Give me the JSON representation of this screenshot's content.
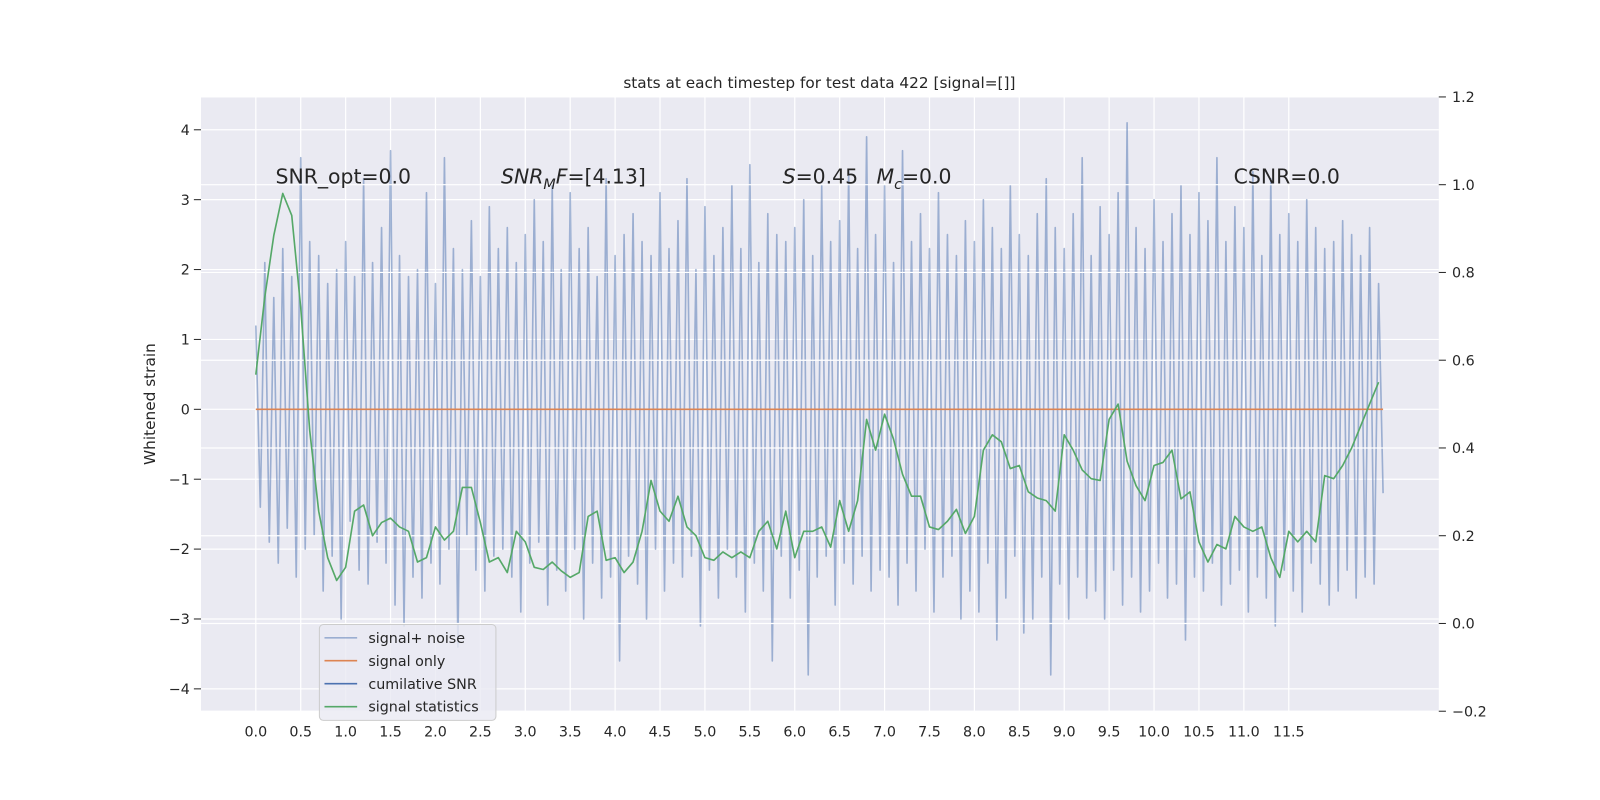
{
  "chart_data": {
    "type": "line",
    "title": "stats at each timestep for test data 422 [signal=[]]",
    "y_label": "Whitened strain",
    "annotations": {
      "snr_opt": "SNR_opt=0.0",
      "snr_mf": {
        "symbol": "SNR",
        "subscript": "M",
        "symbol2": "F",
        "rest": "=[4.13]"
      },
      "s": {
        "symbol": "S",
        "rest": "=0.45"
      },
      "mc": {
        "symbol": "M",
        "subscript": "c",
        "rest": "=0.0"
      },
      "csnr": "CSNR=0.0"
    },
    "xlim": [
      -0.61,
      13.17
    ],
    "xticks": [
      {
        "value": 0,
        "label": "0.0"
      },
      0.5,
      {
        "value": 1,
        "label": "1.0"
      },
      1.5,
      {
        "value": 2,
        "label": "2.0"
      },
      2.5,
      {
        "value": 3,
        "label": "3.0"
      },
      3.5,
      {
        "value": 4,
        "label": "4.0"
      },
      4.5,
      {
        "value": 5,
        "label": "5.0"
      },
      5.5,
      {
        "value": 6,
        "label": "6.0"
      },
      6.5,
      {
        "value": 7,
        "label": "7.0"
      },
      7.5,
      {
        "value": 8,
        "label": "8.0"
      },
      8.5,
      {
        "value": 9,
        "label": "9.0"
      },
      9.5,
      {
        "value": 10,
        "label": "10.0"
      },
      10.5,
      {
        "value": 11,
        "label": "11.0"
      },
      11.5
    ],
    "ylim": [
      -4.32,
      4.47
    ],
    "yticks": [
      {
        "value": -4,
        "label": "−4"
      },
      {
        "value": -3,
        "label": "−3"
      },
      {
        "value": -2,
        "label": "−2"
      },
      {
        "value": -1,
        "label": "−1"
      },
      0,
      1,
      2,
      3,
      4
    ],
    "y2lim": [
      -0.2,
      1.2
    ],
    "y2ticks": [
      {
        "value": -0.2,
        "label": "−0.2"
      },
      {
        "value": 0,
        "label": "0.0"
      },
      0.2,
      0.4,
      0.6,
      0.8,
      {
        "value": 1,
        "label": "1.0"
      },
      1.2
    ],
    "grid": true,
    "legend": "lower left",
    "series": [
      {
        "name": "signal+ noise",
        "color": "#4c72b0",
        "alpha": 0.5,
        "x": [
          0,
          0.05,
          0.1,
          0.15,
          0.2,
          0.25,
          0.3,
          0.35,
          0.4,
          0.45,
          0.5,
          0.55,
          0.6,
          0.65,
          0.7,
          0.75,
          0.8,
          0.85,
          0.9,
          0.95,
          1,
          1.05,
          1.1,
          1.15,
          1.2,
          1.25,
          1.3,
          1.35,
          1.4,
          1.45,
          1.5,
          1.55,
          1.6,
          1.65,
          1.7,
          1.75,
          1.8,
          1.85,
          1.9,
          1.95,
          2,
          2.05,
          2.1,
          2.15,
          2.2,
          2.25,
          2.3,
          2.35,
          2.4,
          2.45,
          2.5,
          2.55,
          2.6,
          2.65,
          2.7,
          2.75,
          2.8,
          2.85,
          2.9,
          2.95,
          3,
          3.05,
          3.1,
          3.15,
          3.2,
          3.25,
          3.3,
          3.35,
          3.4,
          3.45,
          3.5,
          3.55,
          3.6,
          3.65,
          3.7,
          3.75,
          3.8,
          3.85,
          3.9,
          3.95,
          4,
          4.05,
          4.1,
          4.15,
          4.2,
          4.25,
          4.3,
          4.35,
          4.4,
          4.45,
          4.5,
          4.55,
          4.6,
          4.65,
          4.7,
          4.75,
          4.8,
          4.85,
          4.9,
          4.95,
          5,
          5.05,
          5.1,
          5.15,
          5.2,
          5.25,
          5.3,
          5.35,
          5.4,
          5.45,
          5.5,
          5.55,
          5.6,
          5.65,
          5.7,
          5.75,
          5.8,
          5.85,
          5.9,
          5.95,
          6,
          6.05,
          6.1,
          6.15,
          6.2,
          6.25,
          6.3,
          6.35,
          6.4,
          6.45,
          6.5,
          6.55,
          6.6,
          6.65,
          6.7,
          6.75,
          6.8,
          6.85,
          6.9,
          6.95,
          7,
          7.05,
          7.1,
          7.15,
          7.2,
          7.25,
          7.3,
          7.35,
          7.4,
          7.45,
          7.5,
          7.55,
          7.6,
          7.65,
          7.7,
          7.75,
          7.8,
          7.85,
          7.9,
          7.95,
          8,
          8.05,
          8.1,
          8.15,
          8.2,
          8.25,
          8.3,
          8.35,
          8.4,
          8.45,
          8.5,
          8.55,
          8.6,
          8.65,
          8.7,
          8.75,
          8.8,
          8.85,
          8.9,
          8.95,
          9,
          9.05,
          9.1,
          9.15,
          9.2,
          9.25,
          9.3,
          9.35,
          9.4,
          9.45,
          9.5,
          9.55,
          9.6,
          9.65,
          9.7,
          9.75,
          9.8,
          9.85,
          9.9,
          9.95,
          10,
          10.05,
          10.1,
          10.15,
          10.2,
          10.25,
          10.3,
          10.35,
          10.4,
          10.45,
          10.5,
          10.55,
          10.6,
          10.65,
          10.7,
          10.75,
          10.8,
          10.85,
          10.9,
          10.95,
          11,
          11.05,
          11.1,
          11.15,
          11.2,
          11.25,
          11.3,
          11.35,
          11.4,
          11.45,
          11.5,
          11.55,
          11.6,
          11.65,
          11.7,
          11.75,
          11.8,
          11.85,
          11.9,
          11.95,
          12,
          12.05,
          12.1,
          12.15,
          12.2,
          12.25,
          12.3,
          12.35,
          12.4,
          12.45,
          12.5,
          12.55
        ],
        "values": [
          1.2,
          -1.4,
          2.1,
          -1.9,
          1.6,
          -2.2,
          2.3,
          -1.7,
          1.9,
          -2.4,
          3.6,
          -2.0,
          2.4,
          -1.8,
          2.2,
          -2.6,
          1.8,
          -2.1,
          2.0,
          -3.0,
          2.4,
          -1.6,
          1.9,
          -2.3,
          3.3,
          -2.5,
          2.1,
          -1.9,
          2.6,
          -2.2,
          3.7,
          -2.8,
          2.2,
          -3.1,
          1.9,
          -2.4,
          2.0,
          -2.7,
          3.1,
          -2.2,
          1.8,
          -2.5,
          3.6,
          -2.0,
          2.3,
          -3.4,
          2.0,
          -1.8,
          2.7,
          -2.3,
          1.9,
          -2.6,
          2.9,
          -2.1,
          2.3,
          -2.0,
          2.6,
          -2.4,
          2.1,
          -2.9,
          2.5,
          -2.2,
          3.0,
          -1.9,
          2.4,
          -2.8,
          3.2,
          -2.3,
          2.0,
          -2.6,
          3.1,
          -2.0,
          2.3,
          -3.0,
          2.6,
          -2.2,
          1.9,
          -2.7,
          3.3,
          -2.4,
          2.2,
          -3.6,
          2.5,
          -2.1,
          2.8,
          -2.5,
          2.4,
          -3.0,
          2.2,
          -2.0,
          3.1,
          -2.6,
          2.3,
          -2.2,
          2.7,
          -2.4,
          3.3,
          -2.1,
          2.0,
          -3.1,
          2.9,
          -2.3,
          2.2,
          -2.7,
          2.6,
          -2.0,
          3.2,
          -2.4,
          2.3,
          -2.9,
          3.5,
          -2.2,
          2.1,
          -2.6,
          2.8,
          -3.6,
          2.5,
          -2.1,
          2.4,
          -2.7,
          2.6,
          -2.3,
          3.0,
          -3.8,
          2.2,
          -2.4,
          3.2,
          -2.1,
          2.4,
          -2.8,
          2.7,
          -2.2,
          3.4,
          -2.5,
          2.3,
          -2.1,
          3.9,
          -2.6,
          2.5,
          -2.3,
          3.2,
          -2.4,
          2.1,
          -2.8,
          3.7,
          -2.2,
          2.4,
          -2.6,
          2.8,
          -2.0,
          2.3,
          -2.9,
          3.1,
          -2.4,
          2.5,
          -2.1,
          2.2,
          -3.0,
          2.7,
          -2.6,
          2.4,
          -2.9,
          3.0,
          -2.2,
          2.6,
          -3.3,
          2.3,
          -2.7,
          3.2,
          -2.1,
          2.5,
          -3.2,
          2.2,
          -3.0,
          2.8,
          -2.4,
          3.3,
          -3.8,
          2.6,
          -2.5,
          2.3,
          -3.0,
          2.8,
          -2.4,
          3.6,
          -2.7,
          2.2,
          -2.6,
          2.9,
          -3.0,
          2.5,
          -2.3,
          3.1,
          -2.8,
          4.1,
          -2.4,
          2.6,
          -2.9,
          2.3,
          -2.6,
          3.0,
          -2.2,
          2.4,
          -2.7,
          2.8,
          -2.5,
          3.2,
          -3.3,
          2.5,
          -2.4,
          3.1,
          -2.6,
          2.7,
          -2.2,
          3.6,
          -2.8,
          2.4,
          -2.5,
          2.9,
          -2.3,
          2.6,
          -2.9,
          3.4,
          -2.4,
          2.2,
          -2.7,
          3.3,
          -3.1,
          2.5,
          -2.3,
          2.8,
          -2.6,
          2.4,
          -2.9,
          3.0,
          -2.2,
          2.6,
          -2.5,
          2.3,
          -2.8,
          2.4,
          -2.6,
          2.7,
          -2.3,
          2.5,
          -2.7,
          2.2,
          -2.4,
          2.6,
          -2.5,
          1.8,
          -1.2
        ]
      },
      {
        "name": "signal only",
        "color": "#dd8452",
        "x": [
          0,
          12.55
        ],
        "values": [
          0,
          0
        ]
      },
      {
        "name": "cumilative SNR",
        "color": "#4c72b0",
        "x": [],
        "values": []
      },
      {
        "name": "signal statistics",
        "color": "#55a868",
        "axis": "y2",
        "x": [
          0,
          0.1,
          0.2,
          0.3,
          0.4,
          0.5,
          0.6,
          0.7,
          0.8,
          0.9,
          1,
          1.1,
          1.2,
          1.3,
          1.4,
          1.5,
          1.6,
          1.7,
          1.8,
          1.9,
          2,
          2.1,
          2.2,
          2.3,
          2.4,
          2.5,
          2.6,
          2.7,
          2.8,
          2.9,
          3,
          3.1,
          3.2,
          3.3,
          3.4,
          3.5,
          3.6,
          3.7,
          3.8,
          3.9,
          4,
          4.1,
          4.2,
          4.3,
          4.4,
          4.5,
          4.6,
          4.7,
          4.8,
          4.9,
          5,
          5.1,
          5.2,
          5.3,
          5.4,
          5.5,
          5.6,
          5.7,
          5.8,
          5.9,
          6,
          6.1,
          6.2,
          6.3,
          6.4,
          6.5,
          6.6,
          6.7,
          6.8,
          6.9,
          7,
          7.1,
          7.2,
          7.3,
          7.4,
          7.5,
          7.6,
          7.7,
          7.8,
          7.9,
          8,
          8.1,
          8.2,
          8.3,
          8.4,
          8.5,
          8.6,
          8.7,
          8.8,
          8.9,
          9,
          9.1,
          9.2,
          9.3,
          9.4,
          9.5,
          9.6,
          9.7,
          9.8,
          9.9,
          10,
          10.1,
          10.2,
          10.3,
          10.4,
          10.5,
          10.6,
          10.7,
          10.8,
          10.9,
          11,
          11.1,
          11.2,
          11.3,
          11.4,
          11.5,
          11.6,
          11.7,
          11.8,
          11.9,
          12,
          12.1,
          12.2,
          12.3,
          12.4,
          12.5
        ],
        "values": [
          0.567,
          0.744,
          0.884,
          0.98,
          0.93,
          0.72,
          0.44,
          0.256,
          0.15,
          0.098,
          0.128,
          0.256,
          0.27,
          0.2,
          0.23,
          0.24,
          0.22,
          0.21,
          0.14,
          0.15,
          0.22,
          0.19,
          0.21,
          0.31,
          0.31,
          0.23,
          0.14,
          0.15,
          0.116,
          0.21,
          0.186,
          0.128,
          0.123,
          0.14,
          0.12,
          0.105,
          0.116,
          0.244,
          0.256,
          0.144,
          0.15,
          0.116,
          0.14,
          0.21,
          0.326,
          0.256,
          0.233,
          0.29,
          0.22,
          0.2,
          0.15,
          0.144,
          0.163,
          0.15,
          0.163,
          0.15,
          0.21,
          0.233,
          0.17,
          0.256,
          0.15,
          0.21,
          0.21,
          0.22,
          0.174,
          0.28,
          0.21,
          0.28,
          0.465,
          0.395,
          0.477,
          0.42,
          0.34,
          0.29,
          0.29,
          0.22,
          0.214,
          0.233,
          0.26,
          0.205,
          0.244,
          0.395,
          0.43,
          0.414,
          0.353,
          0.36,
          0.3,
          0.286,
          0.28,
          0.256,
          0.43,
          0.395,
          0.35,
          0.33,
          0.326,
          0.465,
          0.5,
          0.37,
          0.314,
          0.28,
          0.36,
          0.367,
          0.395,
          0.284,
          0.3,
          0.186,
          0.14,
          0.18,
          0.17,
          0.244,
          0.22,
          0.21,
          0.22,
          0.15,
          0.105,
          0.21,
          0.186,
          0.21,
          0.186,
          0.337,
          0.33,
          0.36,
          0.4,
          0.45,
          0.5,
          0.55
        ]
      }
    ]
  }
}
